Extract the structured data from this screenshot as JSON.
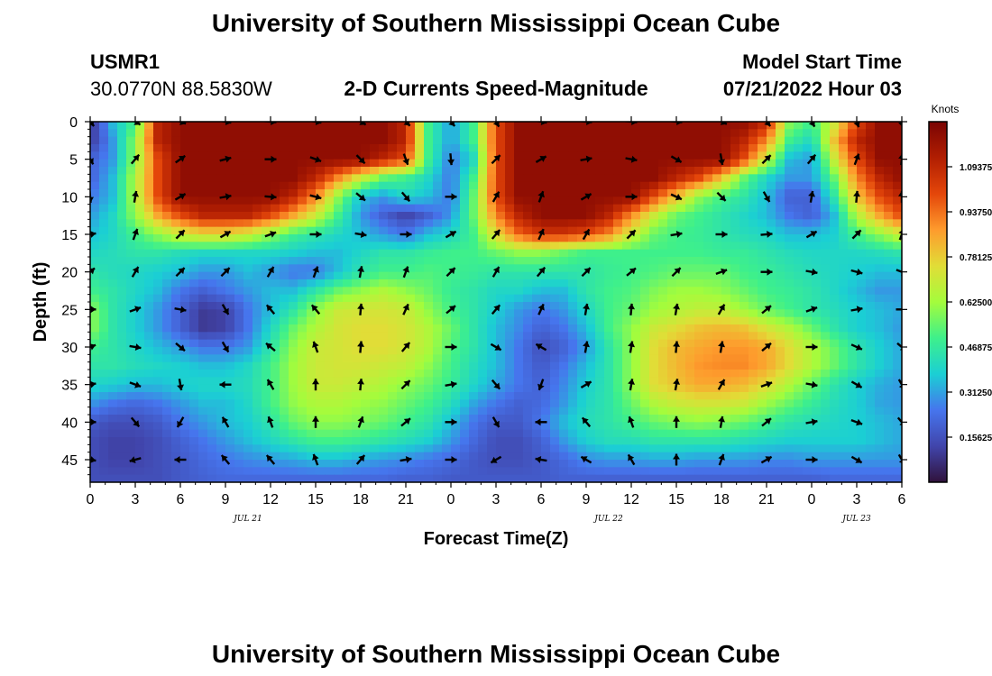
{
  "header": {
    "title": "University of Southern Mississippi Ocean Cube",
    "station_id": "USMR1",
    "coordinates": "30.0770N  88.5830W",
    "product": "2-D Currents Speed-Magnitude",
    "model_start_label": "Model Start Time",
    "model_start_value": "07/21/2022 Hour 03"
  },
  "footer": {
    "title_repeat": "University of Southern Mississippi Ocean Cube"
  },
  "chart_data": {
    "type": "heatmap",
    "title": "2-D Currents Speed-Magnitude",
    "xlabel": "Forecast Time(Z)",
    "ylabel": "Depth (ft)",
    "x_tick_labels": [
      "0",
      "3",
      "6",
      "9",
      "12",
      "15",
      "18",
      "21",
      "0",
      "3",
      "6",
      "9",
      "12",
      "15",
      "18",
      "21",
      "0",
      "3",
      "6"
    ],
    "x_hours": [
      0,
      3,
      6,
      9,
      12,
      15,
      18,
      21,
      24,
      27,
      30,
      33,
      36,
      39,
      42,
      45,
      48,
      51,
      54
    ],
    "xlim": [
      0,
      54
    ],
    "date_labels": [
      {
        "text": "JUL 21",
        "hour": 10.5
      },
      {
        "text": "JUL 22",
        "hour": 34.5
      },
      {
        "text": "JUL 23",
        "hour": 51
      }
    ],
    "y_ticks": [
      0,
      5,
      10,
      15,
      20,
      25,
      30,
      35,
      40,
      45
    ],
    "ylim": [
      0,
      48
    ],
    "colorbar": {
      "title": "Knots",
      "ticks": [
        "1.09375",
        "0.93750",
        "0.78125",
        "0.62500",
        "0.46875",
        "0.31250",
        "0.15625"
      ],
      "range": [
        0,
        1.25
      ]
    },
    "speed_grid_hours": [
      0,
      1.5,
      3,
      4.5,
      6,
      7.5,
      9,
      10.5,
      12,
      13.5,
      15,
      16.5,
      18,
      19.5,
      21,
      22.5,
      24,
      25.5,
      27,
      28.5,
      30,
      31.5,
      33,
      34.5,
      36,
      37.5,
      39,
      40.5,
      42,
      43.5,
      45,
      46.5,
      48,
      49.5,
      51,
      52.5,
      54
    ],
    "speed_grid_depths": [
      0,
      2.5,
      5,
      7.5,
      10,
      12.5,
      15,
      17.5,
      20,
      22.5,
      25,
      27.5,
      30,
      32.5,
      35,
      37.5,
      40,
      42.5,
      45,
      47.5
    ],
    "speed_knots": [
      [
        0.08,
        0.35,
        0.5,
        1.1,
        1.2,
        1.2,
        1.2,
        1.2,
        1.2,
        1.2,
        1.2,
        1.2,
        1.2,
        1.2,
        1.1,
        0.5,
        0.3,
        0.5,
        1.0,
        1.2,
        1.2,
        1.2,
        1.2,
        1.2,
        1.2,
        1.2,
        1.2,
        1.2,
        1.2,
        1.2,
        1.1,
        0.6,
        0.5,
        0.7,
        1.0,
        1.2,
        1.2
      ],
      [
        0.1,
        0.3,
        0.6,
        1.1,
        1.2,
        1.2,
        1.2,
        1.2,
        1.2,
        1.2,
        1.2,
        1.2,
        1.2,
        1.2,
        1.1,
        0.5,
        0.3,
        0.5,
        1.0,
        1.2,
        1.2,
        1.2,
        1.2,
        1.2,
        1.2,
        1.2,
        1.2,
        1.2,
        1.2,
        1.1,
        0.9,
        0.5,
        0.4,
        0.8,
        1.1,
        1.2,
        1.2
      ],
      [
        0.2,
        0.3,
        0.6,
        1.0,
        1.2,
        1.2,
        1.2,
        1.2,
        1.2,
        1.2,
        1.2,
        1.2,
        1.2,
        1.1,
        1.0,
        0.5,
        0.25,
        0.4,
        1.0,
        1.2,
        1.2,
        1.2,
        1.2,
        1.2,
        1.2,
        1.2,
        1.2,
        1.2,
        1.2,
        1.0,
        0.7,
        0.35,
        0.3,
        0.7,
        1.0,
        1.2,
        1.2
      ],
      [
        0.2,
        0.35,
        0.65,
        1.0,
        1.2,
        1.2,
        1.2,
        1.2,
        1.2,
        1.2,
        1.1,
        0.9,
        0.7,
        0.55,
        0.5,
        0.4,
        0.25,
        0.5,
        1.0,
        1.2,
        1.2,
        1.2,
        1.2,
        1.2,
        1.2,
        1.2,
        1.1,
        1.0,
        0.8,
        0.55,
        0.4,
        0.3,
        0.3,
        0.55,
        0.9,
        1.1,
        1.2
      ],
      [
        0.25,
        0.35,
        0.65,
        1.0,
        1.2,
        1.2,
        1.2,
        1.2,
        1.2,
        1.1,
        0.9,
        0.6,
        0.35,
        0.3,
        0.4,
        0.35,
        0.25,
        0.55,
        1.0,
        1.2,
        1.2,
        1.2,
        1.2,
        1.2,
        1.2,
        1.0,
        0.8,
        0.6,
        0.5,
        0.45,
        0.35,
        0.2,
        0.2,
        0.45,
        0.8,
        1.0,
        1.1
      ],
      [
        0.3,
        0.4,
        0.6,
        0.85,
        1.0,
        1.1,
        1.1,
        1.1,
        1.0,
        0.85,
        0.7,
        0.5,
        0.3,
        0.2,
        0.12,
        0.2,
        0.3,
        0.55,
        0.9,
        1.1,
        1.2,
        1.2,
        1.2,
        1.1,
        0.9,
        0.7,
        0.55,
        0.5,
        0.45,
        0.4,
        0.35,
        0.25,
        0.2,
        0.35,
        0.65,
        0.85,
        1.0
      ],
      [
        0.35,
        0.4,
        0.5,
        0.6,
        0.7,
        0.75,
        0.75,
        0.7,
        0.6,
        0.5,
        0.45,
        0.4,
        0.35,
        0.3,
        0.25,
        0.35,
        0.4,
        0.5,
        0.75,
        0.95,
        1.05,
        1.05,
        1.0,
        0.9,
        0.7,
        0.55,
        0.5,
        0.48,
        0.45,
        0.42,
        0.4,
        0.35,
        0.35,
        0.38,
        0.5,
        0.6,
        0.7
      ],
      [
        0.4,
        0.42,
        0.45,
        0.45,
        0.42,
        0.4,
        0.4,
        0.4,
        0.4,
        0.38,
        0.35,
        0.35,
        0.4,
        0.45,
        0.45,
        0.48,
        0.5,
        0.5,
        0.55,
        0.6,
        0.6,
        0.55,
        0.5,
        0.5,
        0.5,
        0.5,
        0.5,
        0.5,
        0.48,
        0.48,
        0.45,
        0.42,
        0.4,
        0.4,
        0.4,
        0.42,
        0.45
      ],
      [
        0.45,
        0.42,
        0.4,
        0.38,
        0.35,
        0.3,
        0.3,
        0.35,
        0.3,
        0.25,
        0.25,
        0.35,
        0.45,
        0.5,
        0.5,
        0.52,
        0.5,
        0.48,
        0.45,
        0.45,
        0.45,
        0.45,
        0.45,
        0.48,
        0.5,
        0.52,
        0.55,
        0.55,
        0.55,
        0.5,
        0.48,
        0.45,
        0.42,
        0.4,
        0.38,
        0.35,
        0.35
      ],
      [
        0.5,
        0.45,
        0.4,
        0.35,
        0.25,
        0.2,
        0.25,
        0.3,
        0.35,
        0.35,
        0.45,
        0.55,
        0.6,
        0.65,
        0.6,
        0.55,
        0.48,
        0.45,
        0.4,
        0.4,
        0.35,
        0.35,
        0.45,
        0.5,
        0.52,
        0.58,
        0.62,
        0.62,
        0.6,
        0.55,
        0.5,
        0.48,
        0.45,
        0.4,
        0.35,
        0.3,
        0.3
      ],
      [
        0.6,
        0.45,
        0.38,
        0.3,
        0.2,
        0.1,
        0.12,
        0.25,
        0.35,
        0.45,
        0.6,
        0.7,
        0.72,
        0.72,
        0.7,
        0.6,
        0.5,
        0.45,
        0.38,
        0.3,
        0.25,
        0.3,
        0.4,
        0.5,
        0.55,
        0.62,
        0.65,
        0.68,
        0.68,
        0.62,
        0.55,
        0.5,
        0.45,
        0.42,
        0.38,
        0.35,
        0.32
      ],
      [
        0.6,
        0.45,
        0.38,
        0.3,
        0.2,
        0.1,
        0.12,
        0.25,
        0.4,
        0.55,
        0.65,
        0.72,
        0.75,
        0.75,
        0.72,
        0.65,
        0.55,
        0.45,
        0.35,
        0.28,
        0.2,
        0.25,
        0.35,
        0.5,
        0.6,
        0.7,
        0.75,
        0.8,
        0.82,
        0.8,
        0.72,
        0.65,
        0.55,
        0.45,
        0.38,
        0.35,
        0.3
      ],
      [
        0.5,
        0.45,
        0.4,
        0.35,
        0.3,
        0.25,
        0.25,
        0.3,
        0.45,
        0.6,
        0.7,
        0.72,
        0.75,
        0.75,
        0.72,
        0.65,
        0.52,
        0.45,
        0.35,
        0.25,
        0.15,
        0.2,
        0.3,
        0.45,
        0.6,
        0.75,
        0.82,
        0.85,
        0.88,
        0.88,
        0.85,
        0.75,
        0.65,
        0.55,
        0.45,
        0.38,
        0.32
      ],
      [
        0.45,
        0.45,
        0.42,
        0.4,
        0.38,
        0.35,
        0.35,
        0.4,
        0.5,
        0.62,
        0.7,
        0.72,
        0.72,
        0.7,
        0.68,
        0.6,
        0.5,
        0.42,
        0.35,
        0.25,
        0.18,
        0.25,
        0.35,
        0.45,
        0.6,
        0.75,
        0.82,
        0.88,
        0.9,
        0.9,
        0.85,
        0.75,
        0.65,
        0.55,
        0.45,
        0.38,
        0.32
      ],
      [
        0.4,
        0.38,
        0.35,
        0.35,
        0.38,
        0.4,
        0.4,
        0.42,
        0.5,
        0.62,
        0.7,
        0.7,
        0.68,
        0.65,
        0.6,
        0.55,
        0.48,
        0.4,
        0.32,
        0.25,
        0.2,
        0.28,
        0.38,
        0.45,
        0.6,
        0.75,
        0.8,
        0.85,
        0.85,
        0.82,
        0.75,
        0.65,
        0.55,
        0.45,
        0.38,
        0.33,
        0.3
      ],
      [
        0.3,
        0.25,
        0.22,
        0.25,
        0.3,
        0.35,
        0.35,
        0.4,
        0.5,
        0.6,
        0.65,
        0.65,
        0.62,
        0.6,
        0.55,
        0.5,
        0.42,
        0.32,
        0.25,
        0.2,
        0.22,
        0.3,
        0.4,
        0.45,
        0.55,
        0.65,
        0.7,
        0.72,
        0.72,
        0.7,
        0.62,
        0.55,
        0.48,
        0.42,
        0.38,
        0.32,
        0.3
      ],
      [
        0.18,
        0.15,
        0.15,
        0.18,
        0.25,
        0.3,
        0.35,
        0.38,
        0.45,
        0.55,
        0.6,
        0.6,
        0.58,
        0.55,
        0.5,
        0.45,
        0.35,
        0.25,
        0.18,
        0.18,
        0.25,
        0.35,
        0.42,
        0.45,
        0.5,
        0.55,
        0.58,
        0.6,
        0.58,
        0.55,
        0.5,
        0.45,
        0.42,
        0.4,
        0.38,
        0.35,
        0.32
      ],
      [
        0.15,
        0.12,
        0.12,
        0.15,
        0.2,
        0.25,
        0.3,
        0.35,
        0.4,
        0.45,
        0.5,
        0.5,
        0.48,
        0.45,
        0.42,
        0.38,
        0.3,
        0.22,
        0.15,
        0.15,
        0.2,
        0.3,
        0.38,
        0.42,
        0.42,
        0.45,
        0.45,
        0.45,
        0.45,
        0.42,
        0.4,
        0.38,
        0.38,
        0.38,
        0.38,
        0.35,
        0.32
      ],
      [
        0.15,
        0.12,
        0.12,
        0.15,
        0.18,
        0.22,
        0.25,
        0.28,
        0.3,
        0.32,
        0.35,
        0.35,
        0.32,
        0.3,
        0.28,
        0.25,
        0.22,
        0.18,
        0.15,
        0.15,
        0.18,
        0.22,
        0.28,
        0.3,
        0.3,
        0.32,
        0.32,
        0.3,
        0.3,
        0.3,
        0.28,
        0.28,
        0.3,
        0.3,
        0.3,
        0.3,
        0.3
      ],
      [
        0.15,
        0.15,
        0.15,
        0.15,
        0.18,
        0.2,
        0.22,
        0.22,
        0.22,
        0.22,
        0.22,
        0.22,
        0.22,
        0.22,
        0.2,
        0.2,
        0.18,
        0.18,
        0.18,
        0.18,
        0.18,
        0.2,
        0.2,
        0.2,
        0.2,
        0.2,
        0.2,
        0.2,
        0.2,
        0.2,
        0.2,
        0.2,
        0.2,
        0.22,
        0.22,
        0.22,
        0.22
      ]
    ],
    "vector_hours": [
      0,
      3,
      6,
      9,
      12,
      15,
      18,
      21,
      24,
      27,
      30,
      33,
      36,
      39,
      42,
      45,
      48,
      51,
      54
    ],
    "vector_depths": [
      0,
      5,
      10,
      15,
      20,
      25,
      30,
      35,
      40,
      45
    ],
    "vector_directions_deg": [
      [
        140,
        120,
        110,
        100,
        95,
        100,
        120,
        135,
        140,
        150,
        100,
        95,
        95,
        95,
        115,
        140,
        150,
        160,
        170
      ],
      [
        150,
        40,
        55,
        75,
        90,
        110,
        135,
        160,
        175,
        45,
        60,
        80,
        100,
        120,
        170,
        45,
        40,
        20,
        5
      ],
      [
        175,
        10,
        60,
        80,
        95,
        105,
        130,
        140,
        90,
        30,
        20,
        60,
        90,
        115,
        135,
        150,
        10,
        5,
        0
      ],
      [
        80,
        20,
        45,
        60,
        70,
        90,
        100,
        90,
        60,
        40,
        25,
        30,
        45,
        80,
        90,
        85,
        60,
        45,
        20
      ],
      [
        50,
        30,
        45,
        45,
        30,
        20,
        10,
        20,
        45,
        30,
        40,
        45,
        50,
        45,
        70,
        90,
        100,
        105,
        110
      ],
      [
        90,
        70,
        100,
        150,
        320,
        320,
        5,
        25,
        50,
        40,
        25,
        10,
        5,
        10,
        30,
        50,
        70,
        80,
        90
      ],
      [
        70,
        100,
        130,
        150,
        310,
        340,
        5,
        40,
        90,
        120,
        300,
        10,
        10,
        5,
        10,
        50,
        90,
        115,
        130
      ],
      [
        80,
        110,
        170,
        270,
        330,
        0,
        5,
        45,
        80,
        140,
        200,
        60,
        10,
        10,
        30,
        70,
        100,
        120,
        150
      ],
      [
        90,
        140,
        210,
        330,
        340,
        0,
        20,
        50,
        90,
        150,
        270,
        320,
        340,
        0,
        10,
        50,
        80,
        110,
        140
      ],
      [
        100,
        255,
        270,
        320,
        320,
        340,
        40,
        80,
        90,
        240,
        280,
        300,
        330,
        0,
        20,
        60,
        90,
        120,
        150
      ]
    ]
  }
}
